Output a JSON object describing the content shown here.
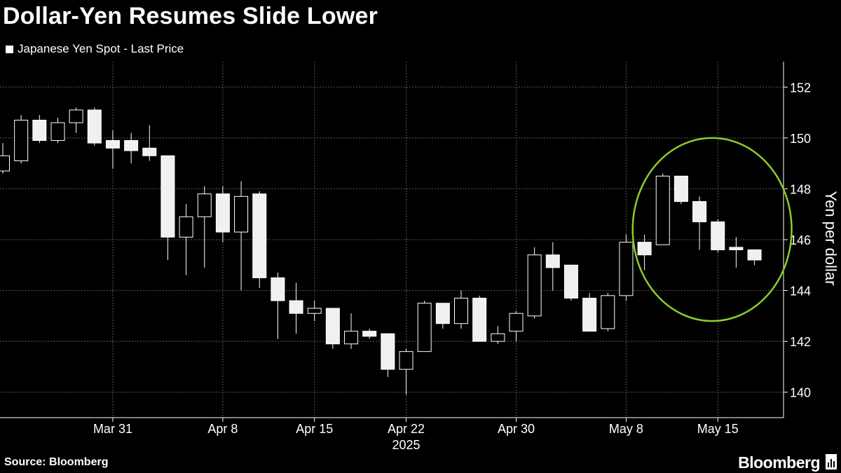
{
  "title": "Dollar-Yen Resumes Slide Lower",
  "legend": {
    "label": "Japanese Yen Spot - Last Price",
    "color": "#ffffff"
  },
  "footer": {
    "source": "Source: Bloomberg",
    "brand": "Bloomberg"
  },
  "annotation": {
    "shape": "ellipse",
    "color": "#8ccc2a",
    "description": "circles the May 12 to May 19 candles"
  },
  "chart_data": {
    "type": "candlestick",
    "title": "Dollar-Yen Resumes Slide Lower",
    "ylabel": "Yen per dollar",
    "ylim": [
      139,
      153
    ],
    "yticks": [
      140,
      142,
      144,
      146,
      148,
      150,
      152
    ],
    "grid": true,
    "legend_position": "top-left",
    "x_ticks": [
      {
        "label": "Mar 31",
        "date": "Mar 31"
      },
      {
        "label": "Apr 8",
        "date": "Apr 8"
      },
      {
        "label": "Apr 15",
        "date": "Apr 15"
      },
      {
        "label": "Apr 22",
        "date": "Apr 22"
      },
      {
        "label": "Apr 30",
        "date": "Apr 30"
      },
      {
        "label": "May 8",
        "date": "May 8"
      },
      {
        "label": "May 15",
        "date": "May 15"
      }
    ],
    "year_label": "2025",
    "series": [
      {
        "date": "Mar 21",
        "open": 148.7,
        "high": 149.8,
        "low": 148.6,
        "close": 149.3
      },
      {
        "date": "Mar 24",
        "open": 149.1,
        "high": 150.9,
        "low": 149.0,
        "close": 150.7
      },
      {
        "date": "Mar 25",
        "open": 150.7,
        "high": 150.9,
        "low": 149.8,
        "close": 149.9
      },
      {
        "date": "Mar 26",
        "open": 149.9,
        "high": 150.8,
        "low": 149.8,
        "close": 150.6
      },
      {
        "date": "Mar 27",
        "open": 150.6,
        "high": 151.2,
        "low": 150.2,
        "close": 151.1
      },
      {
        "date": "Mar 28",
        "open": 151.1,
        "high": 151.2,
        "low": 149.7,
        "close": 149.8
      },
      {
        "date": "Mar 31",
        "open": 149.9,
        "high": 150.3,
        "low": 148.8,
        "close": 149.6
      },
      {
        "date": "Apr 1",
        "open": 149.9,
        "high": 150.2,
        "low": 149.0,
        "close": 149.5
      },
      {
        "date": "Apr 2",
        "open": 149.6,
        "high": 150.5,
        "low": 149.1,
        "close": 149.3
      },
      {
        "date": "Apr 3",
        "open": 149.3,
        "high": 149.3,
        "low": 145.2,
        "close": 146.1
      },
      {
        "date": "Apr 4",
        "open": 146.1,
        "high": 147.4,
        "low": 144.6,
        "close": 146.9
      },
      {
        "date": "Apr 7",
        "open": 146.9,
        "high": 148.1,
        "low": 144.9,
        "close": 147.8
      },
      {
        "date": "Apr 8",
        "open": 147.8,
        "high": 148.1,
        "low": 145.9,
        "close": 146.3
      },
      {
        "date": "Apr 9",
        "open": 146.3,
        "high": 148.3,
        "low": 144.0,
        "close": 147.7
      },
      {
        "date": "Apr 10",
        "open": 147.8,
        "high": 147.9,
        "low": 144.1,
        "close": 144.5
      },
      {
        "date": "Apr 11",
        "open": 144.5,
        "high": 144.7,
        "low": 142.1,
        "close": 143.6
      },
      {
        "date": "Apr 14",
        "open": 143.6,
        "high": 144.3,
        "low": 142.3,
        "close": 143.1
      },
      {
        "date": "Apr 15",
        "open": 143.1,
        "high": 143.6,
        "low": 142.8,
        "close": 143.3
      },
      {
        "date": "Apr 16",
        "open": 143.3,
        "high": 143.3,
        "low": 141.7,
        "close": 141.9
      },
      {
        "date": "Apr 17",
        "open": 141.9,
        "high": 143.1,
        "low": 141.7,
        "close": 142.4
      },
      {
        "date": "Apr 18",
        "open": 142.4,
        "high": 142.5,
        "low": 142.1,
        "close": 142.2
      },
      {
        "date": "Apr 21",
        "open": 142.3,
        "high": 142.3,
        "low": 140.6,
        "close": 140.9
      },
      {
        "date": "Apr 22",
        "open": 140.9,
        "high": 141.7,
        "low": 139.9,
        "close": 141.6
      },
      {
        "date": "Apr 23",
        "open": 141.6,
        "high": 143.6,
        "low": 141.6,
        "close": 143.5
      },
      {
        "date": "Apr 24",
        "open": 143.5,
        "high": 143.5,
        "low": 142.5,
        "close": 142.7
      },
      {
        "date": "Apr 25",
        "open": 142.7,
        "high": 144.0,
        "low": 142.5,
        "close": 143.7
      },
      {
        "date": "Apr 28",
        "open": 143.7,
        "high": 143.8,
        "low": 142.0,
        "close": 142.0
      },
      {
        "date": "Apr 29",
        "open": 142.0,
        "high": 142.6,
        "low": 141.9,
        "close": 142.3
      },
      {
        "date": "Apr 30",
        "open": 142.4,
        "high": 143.2,
        "low": 142.0,
        "close": 143.1
      },
      {
        "date": "May 1",
        "open": 143.0,
        "high": 145.7,
        "low": 142.9,
        "close": 145.4
      },
      {
        "date": "May 2",
        "open": 145.4,
        "high": 145.9,
        "low": 144.0,
        "close": 144.9
      },
      {
        "date": "May 5",
        "open": 145.0,
        "high": 145.0,
        "low": 143.6,
        "close": 143.7
      },
      {
        "date": "May 6",
        "open": 143.7,
        "high": 143.9,
        "low": 142.4,
        "close": 142.4
      },
      {
        "date": "May 7",
        "open": 142.5,
        "high": 143.9,
        "low": 142.4,
        "close": 143.8
      },
      {
        "date": "May 8",
        "open": 143.8,
        "high": 146.2,
        "low": 143.6,
        "close": 145.9
      },
      {
        "date": "May 9",
        "open": 145.9,
        "high": 146.2,
        "low": 144.8,
        "close": 145.4
      },
      {
        "date": "May 12",
        "open": 145.8,
        "high": 148.6,
        "low": 145.8,
        "close": 148.5
      },
      {
        "date": "May 13",
        "open": 148.5,
        "high": 148.5,
        "low": 147.4,
        "close": 147.5
      },
      {
        "date": "May 14",
        "open": 147.5,
        "high": 147.7,
        "low": 145.6,
        "close": 146.7
      },
      {
        "date": "May 15",
        "open": 146.7,
        "high": 146.8,
        "low": 145.5,
        "close": 145.6
      },
      {
        "date": "May 16",
        "open": 145.7,
        "high": 146.1,
        "low": 144.9,
        "close": 145.6
      },
      {
        "date": "May 19",
        "open": 145.6,
        "high": 145.6,
        "low": 145.0,
        "close": 145.2
      }
    ]
  }
}
